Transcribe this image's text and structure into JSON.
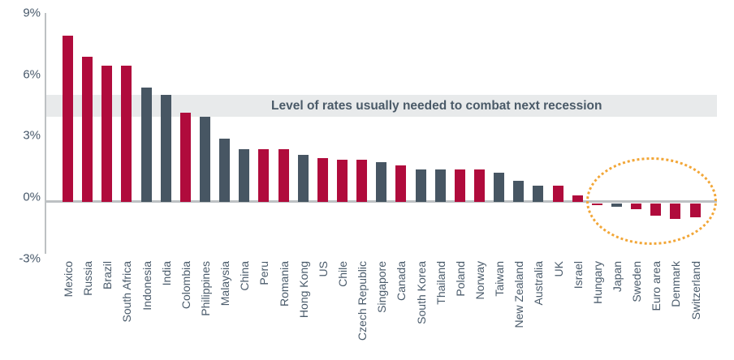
{
  "chart_data": {
    "type": "bar",
    "title": "",
    "unit": "%",
    "categories": [
      "Mexico",
      "Russia",
      "Brazil",
      "South Africa",
      "Indonesia",
      "India",
      "Colombia",
      "Philippines",
      "Malaysia",
      "China",
      "Peru",
      "Romania",
      "Hong Kong",
      "US",
      "Chile",
      "Czech Republic",
      "Singapore",
      "Canada",
      "South Korea",
      "Thailand",
      "Poland",
      "Norway",
      "Taiwan",
      "New Zealand",
      "Australia",
      "UK",
      "Israel",
      "Hungary",
      "Japan",
      "Sweden",
      "Euro area",
      "Denmark",
      "Switzerland"
    ],
    "values": [
      8.15,
      7.1,
      6.65,
      6.65,
      5.6,
      5.25,
      4.35,
      4.15,
      3.1,
      2.6,
      2.6,
      2.6,
      2.3,
      2.15,
      2.05,
      2.05,
      1.95,
      1.8,
      1.6,
      1.6,
      1.6,
      1.6,
      1.45,
      1.05,
      0.8,
      0.8,
      0.3,
      -0.15,
      -0.2,
      -0.35,
      -0.65,
      -0.8,
      -0.75
    ],
    "bar_colors": [
      "red",
      "red",
      "red",
      "red",
      "slate",
      "slate",
      "red",
      "slate",
      "slate",
      "slate",
      "red",
      "red",
      "slate",
      "red",
      "red",
      "red",
      "slate",
      "red",
      "slate",
      "slate",
      "red",
      "red",
      "slate",
      "slate",
      "slate",
      "red",
      "red",
      "red",
      "slate",
      "red",
      "red",
      "red",
      "red"
    ],
    "colors": {
      "red": "#b00b3c",
      "slate": "#475663"
    },
    "xlabel": "",
    "ylabel": "",
    "ylim": [
      -3,
      9
    ],
    "grid": false,
    "legend": "none",
    "yticks": [
      {
        "label": "9%",
        "value": 9
      },
      {
        "label": "6%",
        "value": 6
      },
      {
        "label": "3%",
        "value": 3
      },
      {
        "label": "0%",
        "value": 0
      },
      {
        "label": "-3%",
        "value": -3
      }
    ],
    "annotations": {
      "band": {
        "label": "Level of rates usually needed to combat next recession",
        "from_pct": 4.2,
        "to_pct": 5.2,
        "color": "#e8eaeb"
      },
      "ellipse": {
        "around": [
          "Hungary",
          "Japan",
          "Sweden",
          "Euro area",
          "Denmark",
          "Switzerland"
        ],
        "color": "#f2a637",
        "style": "dotted"
      }
    }
  }
}
